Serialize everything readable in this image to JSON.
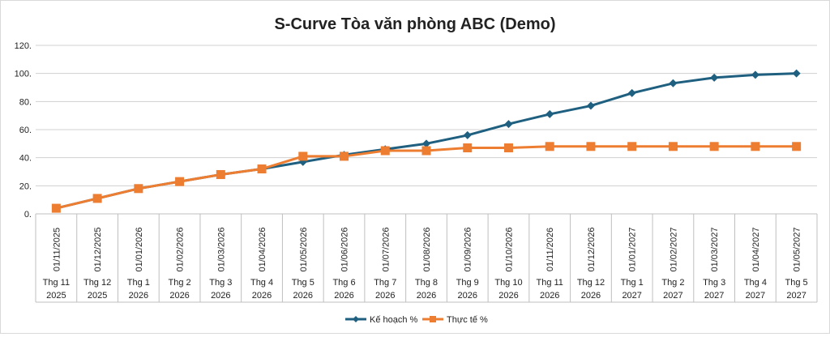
{
  "chart_data": {
    "type": "line",
    "title": "S-Curve Tòa văn phòng ABC (Demo)",
    "xlabel": "",
    "ylabel": "",
    "ylim": [
      0,
      120
    ],
    "y_ticks": [
      "0.",
      "20.",
      "40.",
      "60.",
      "80.",
      "100.",
      "120."
    ],
    "grid": true,
    "legend_position": "bottom",
    "categories": [
      {
        "date": "01/11/2025",
        "line1": "Thg 11",
        "line2": "2025"
      },
      {
        "date": "01/12/2025",
        "line1": "Thg 12",
        "line2": "2025"
      },
      {
        "date": "01/01/2026",
        "line1": "Thg 1",
        "line2": "2026"
      },
      {
        "date": "01/02/2026",
        "line1": "Thg 2",
        "line2": "2026"
      },
      {
        "date": "01/03/2026",
        "line1": "Thg 3",
        "line2": "2026"
      },
      {
        "date": "01/04/2026",
        "line1": "Thg 4",
        "line2": "2026"
      },
      {
        "date": "01/05/2026",
        "line1": "Thg 5",
        "line2": "2026"
      },
      {
        "date": "01/06/2026",
        "line1": "Thg 6",
        "line2": "2026"
      },
      {
        "date": "01/07/2026",
        "line1": "Thg 7",
        "line2": "2026"
      },
      {
        "date": "01/08/2026",
        "line1": "Thg 8",
        "line2": "2026"
      },
      {
        "date": "01/09/2026",
        "line1": "Thg 9",
        "line2": "2026"
      },
      {
        "date": "01/10/2026",
        "line1": "Thg 10",
        "line2": "2026"
      },
      {
        "date": "01/11/2026",
        "line1": "Thg 11",
        "line2": "2026"
      },
      {
        "date": "01/12/2026",
        "line1": "Thg 12",
        "line2": "2026"
      },
      {
        "date": "01/01/2027",
        "line1": "Thg 1",
        "line2": "2027"
      },
      {
        "date": "01/02/2027",
        "line1": "Thg 2",
        "line2": "2027"
      },
      {
        "date": "01/03/2027",
        "line1": "Thg 3",
        "line2": "2027"
      },
      {
        "date": "01/04/2027",
        "line1": "Thg 4",
        "line2": "2027"
      },
      {
        "date": "01/05/2027",
        "line1": "Thg 5",
        "line2": "2027"
      }
    ],
    "series": [
      {
        "name": "Kế hoạch %",
        "color": "#1f5f7f",
        "marker": "diamond",
        "values": [
          4,
          11,
          18,
          23,
          28,
          32,
          37,
          42,
          46,
          50,
          56,
          64,
          71,
          77,
          86,
          93,
          97,
          99,
          100
        ]
      },
      {
        "name": "Thực tế %",
        "color": "#ed7d31",
        "marker": "square",
        "values": [
          4,
          11,
          18,
          23,
          28,
          32,
          41,
          41,
          45,
          45,
          47,
          47,
          48,
          48,
          48,
          48,
          48,
          48,
          48
        ]
      }
    ]
  }
}
